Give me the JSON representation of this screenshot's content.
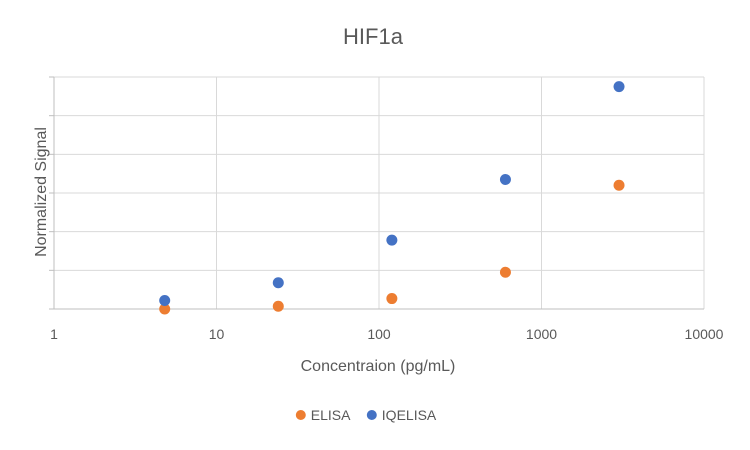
{
  "chart_data": {
    "type": "scatter",
    "title": "HIF1a",
    "xlabel": "Concentraion (pg/mL)",
    "ylabel": "Normalized Signal",
    "x_scale": "log",
    "xlim": [
      1,
      10000
    ],
    "x_tick_labels": [
      "1",
      "10",
      "100",
      "1000",
      "10000"
    ],
    "x_ticks": [
      1,
      10,
      100,
      1000,
      10000
    ],
    "ylim": [
      0,
      6
    ],
    "y_ticks": [
      0,
      1,
      2,
      3,
      4,
      5,
      6
    ],
    "y_tick_labels_shown": false,
    "grid": true,
    "legend_position": "bottom",
    "series": [
      {
        "name": "ELISA",
        "color": "#ED7D31",
        "x": [
          4.8,
          24,
          120,
          600,
          3000
        ],
        "y": [
          0.0,
          0.07,
          0.27,
          0.95,
          3.2
        ]
      },
      {
        "name": "IQELISA",
        "color": "#4472C4",
        "x": [
          4.8,
          24,
          120,
          600,
          3000
        ],
        "y": [
          0.22,
          0.68,
          1.78,
          3.35,
          5.75
        ]
      }
    ]
  }
}
